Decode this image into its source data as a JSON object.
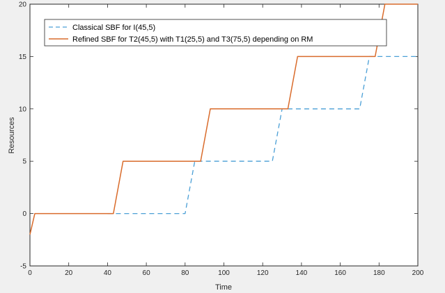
{
  "chart_data": {
    "type": "line",
    "title": "",
    "xlabel": "Time",
    "ylabel": "Resources",
    "xlim": [
      0,
      200
    ],
    "ylim": [
      -5,
      20
    ],
    "xticks": [
      0,
      20,
      40,
      60,
      80,
      100,
      120,
      140,
      160,
      180,
      200
    ],
    "yticks": [
      -5,
      0,
      5,
      10,
      15,
      20
    ],
    "grid": false,
    "legend_position": "top-left",
    "series": [
      {
        "name": "Classical SBF for I(45,5)",
        "style": "dashed",
        "color": "#4a9fd6",
        "x": [
          40,
          80,
          85,
          125,
          130,
          170,
          175,
          200
        ],
        "y": [
          0,
          0,
          5,
          5,
          10,
          10,
          15,
          15
        ]
      },
      {
        "name": "Refined SBF for T2(45,5) with T1(25,5) and T3(75,5) depending on RM",
        "style": "solid",
        "color": "#d96b2b",
        "x": [
          0,
          2.5,
          43,
          48,
          88,
          93,
          133,
          138,
          178,
          183,
          200
        ],
        "y": [
          -2,
          0,
          0,
          5,
          5,
          10,
          10,
          15,
          15,
          20,
          20
        ]
      }
    ]
  }
}
